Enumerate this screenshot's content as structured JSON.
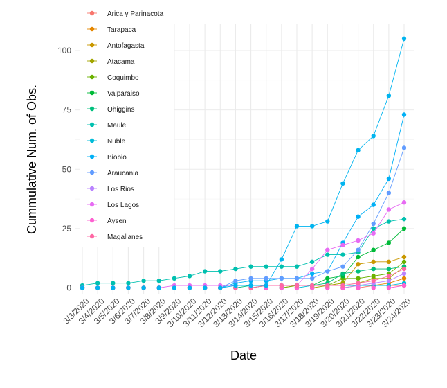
{
  "chart_data": {
    "type": "line",
    "xlabel": "Date",
    "ylabel": "Cummulative Num. of Obs.",
    "title": "",
    "x": [
      "3/3/2020",
      "3/4/2020",
      "3/5/2020",
      "3/6/2020",
      "3/7/2020",
      "3/8/2020",
      "3/9/2020",
      "3/10/2020",
      "3/11/2020",
      "3/12/2020",
      "3/13/2020",
      "3/14/2020",
      "3/15/2020",
      "3/16/2020",
      "3/17/2020",
      "3/18/2020",
      "3/19/2020",
      "3/20/2020",
      "3/21/2020",
      "3/22/2020",
      "3/23/2020",
      "3/24/2020"
    ],
    "yticks": [
      0,
      25,
      50,
      75,
      100
    ],
    "ylim": [
      -3,
      110
    ],
    "grid": true,
    "legend_position": "top-left",
    "series": [
      {
        "name": "Arica y Parinacota",
        "color": "#F8766D",
        "values": [
          0,
          0,
          0,
          0,
          0,
          0,
          0,
          0,
          0,
          0,
          0,
          0,
          0,
          0,
          0,
          0,
          0,
          0,
          0,
          1,
          1,
          1
        ]
      },
      {
        "name": "Tarapaca",
        "color": "#E58700",
        "values": [
          0,
          0,
          0,
          0,
          0,
          0,
          0,
          0,
          0,
          0,
          0,
          0,
          0,
          0,
          0,
          0,
          0,
          0,
          1,
          1,
          2,
          4
        ]
      },
      {
        "name": "Antofagasta",
        "color": "#C99800",
        "values": [
          0,
          0,
          0,
          0,
          0,
          0,
          0,
          0,
          0,
          0,
          0,
          0,
          0,
          0,
          1,
          1,
          1,
          2,
          10,
          11,
          11,
          13
        ]
      },
      {
        "name": "Atacama",
        "color": "#A3A500",
        "values": [
          0,
          0,
          0,
          0,
          0,
          0,
          0,
          0,
          0,
          0,
          0,
          0,
          0,
          0,
          0,
          0,
          1,
          2,
          2,
          4,
          4,
          9
        ]
      },
      {
        "name": "Coquimbo",
        "color": "#6BB100",
        "values": [
          0,
          0,
          0,
          0,
          0,
          0,
          0,
          0,
          0,
          0,
          0,
          0,
          0,
          0,
          1,
          1,
          1,
          4,
          4,
          5,
          6,
          11
        ]
      },
      {
        "name": "Valparaiso",
        "color": "#00BA38",
        "values": [
          0,
          0,
          0,
          0,
          0,
          0,
          0,
          0,
          0,
          0,
          0,
          0,
          1,
          1,
          1,
          1,
          4,
          5,
          13,
          16,
          19,
          25
        ]
      },
      {
        "name": "Ohiggins",
        "color": "#00BF7D",
        "values": [
          0,
          0,
          0,
          0,
          0,
          0,
          0,
          0,
          0,
          0,
          0,
          1,
          1,
          1,
          1,
          1,
          2,
          6,
          7,
          8,
          8,
          9
        ]
      },
      {
        "name": "Maule",
        "color": "#00C0AF",
        "values": [
          1,
          2,
          2,
          2,
          3,
          3,
          4,
          5,
          7,
          7,
          8,
          9,
          9,
          9,
          9,
          11,
          14,
          14,
          15,
          25,
          28,
          29
        ]
      },
      {
        "name": "Nuble",
        "color": "#00BCD8",
        "values": [
          0,
          0,
          0,
          0,
          0,
          0,
          0,
          0,
          0,
          0,
          0,
          0,
          0,
          0,
          0,
          1,
          1,
          1,
          1,
          1,
          1,
          2
        ]
      },
      {
        "name": "Biobio",
        "color": "#00B0F6",
        "values": [
          0,
          0,
          0,
          0,
          0,
          0,
          0,
          0,
          0,
          0,
          2,
          3,
          3,
          4,
          4,
          6,
          7,
          19,
          30,
          35,
          46,
          73
        ]
      },
      {
        "name": "Araucania",
        "color": "#619CFF",
        "values": [
          0,
          0,
          0,
          0,
          0,
          0,
          0,
          0,
          0,
          0,
          3,
          4,
          4,
          4,
          4,
          4,
          7,
          9,
          16,
          27,
          40,
          59
        ]
      },
      {
        "name": "Los Rios",
        "color": "#B983FF",
        "values": [
          0,
          0,
          0,
          0,
          0,
          0,
          0,
          0,
          0,
          0,
          0,
          0,
          0,
          0,
          0,
          0,
          0,
          0,
          1,
          2,
          3,
          6
        ]
      },
      {
        "name": "Los Lagos",
        "color": "#E76BF3",
        "values": [
          0,
          0,
          0,
          0,
          0,
          0,
          1,
          1,
          1,
          1,
          1,
          1,
          1,
          1,
          1,
          8,
          16,
          18,
          20,
          23,
          33,
          36
        ]
      },
      {
        "name": "Aysen",
        "color": "#FD61D1",
        "values": [
          0,
          0,
          0,
          0,
          0,
          0,
          0,
          0,
          0,
          0,
          0,
          0,
          0,
          0,
          0,
          0,
          0,
          0,
          0,
          0,
          0,
          1
        ]
      },
      {
        "name": "Magallanes",
        "color": "#FF67A4",
        "values": [
          0,
          0,
          0,
          0,
          0,
          0,
          0,
          0,
          0,
          0,
          0,
          0,
          1,
          1,
          1,
          1,
          1,
          1,
          2,
          3,
          5,
          8
        ]
      },
      {
        "name": "",
        "color": "#00B4EF",
        "values": [
          0,
          0,
          0,
          0,
          0,
          0,
          0,
          0,
          0,
          0,
          1,
          1,
          1,
          12,
          26,
          26,
          28,
          44,
          58,
          64,
          81,
          105
        ]
      }
    ]
  }
}
